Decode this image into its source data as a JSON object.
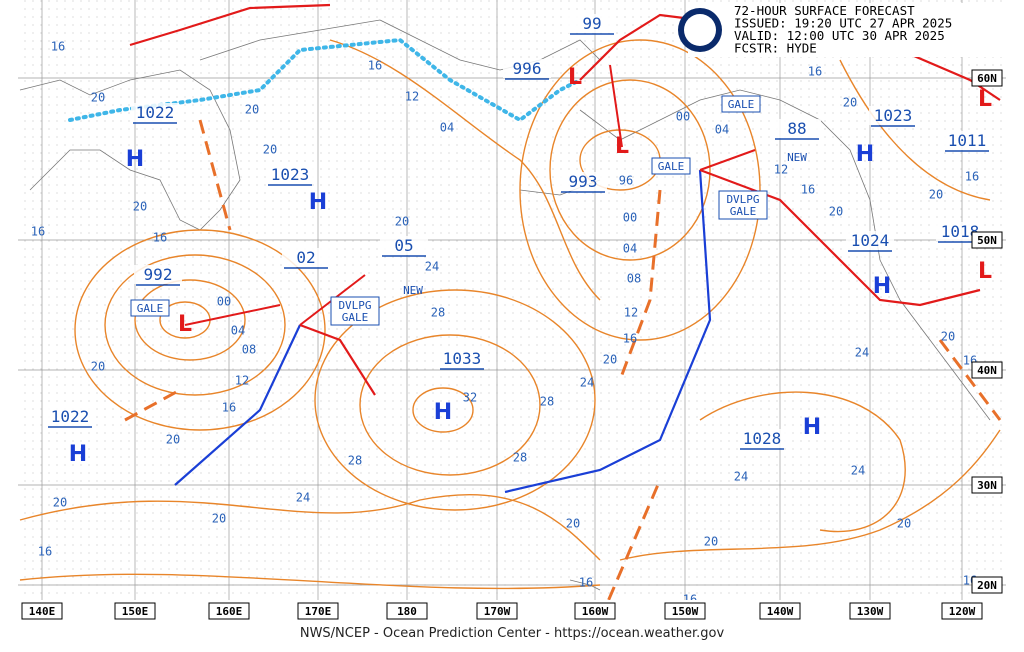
{
  "header": {
    "lines": [
      "72-HOUR SURFACE FORECAST",
      "ISSUED: 19:20 UTC 27 APR 2025",
      "VALID:  12:00 UTC 30 APR 2025",
      "FCSTR:  HYDE"
    ]
  },
  "pressure_labels": [
    "1022",
    "1023",
    "1022",
    "1033",
    "1028",
    "1023",
    "1011",
    "1024",
    "1018",
    "992",
    "993",
    "996",
    "99",
    "88",
    "02",
    "05"
  ],
  "symbols": [
    "H",
    "H",
    "H",
    "H",
    "H",
    "H",
    "H",
    "L",
    "L",
    "L",
    "L",
    "L"
  ],
  "isobar_labels": [
    "16",
    "20",
    "20",
    "20",
    "16",
    "12",
    "04",
    "20",
    "16",
    "16",
    "20",
    "24",
    "28",
    "00",
    "04",
    "08",
    "12",
    "16",
    "20",
    "20",
    "20",
    "24",
    "28",
    "20",
    "16",
    "28",
    "28",
    "24",
    "20",
    "16",
    "12",
    "08",
    "04",
    "00",
    "00",
    "04",
    "12",
    "16",
    "20",
    "16",
    "20",
    "20",
    "16",
    "24",
    "20",
    "16",
    "24",
    "24",
    "20",
    "20",
    "20",
    "16",
    "16",
    "16",
    "32",
    "96"
  ],
  "warnings": [
    "GALE",
    "GALE",
    "GALE",
    "DVLPG GALE",
    "DVLPG GALE"
  ],
  "new_labels": [
    "NEW",
    "NEW"
  ],
  "longitudes": [
    "140E",
    "150E",
    "160E",
    "170E",
    "180",
    "170W",
    "160W",
    "150W",
    "140W",
    "130W",
    "120W"
  ],
  "latitudes": [
    "60N",
    "50N",
    "40N",
    "30N",
    "20N"
  ],
  "footer": "NWS/NCEP - Ocean Prediction Center - https://ocean.weather.gov"
}
